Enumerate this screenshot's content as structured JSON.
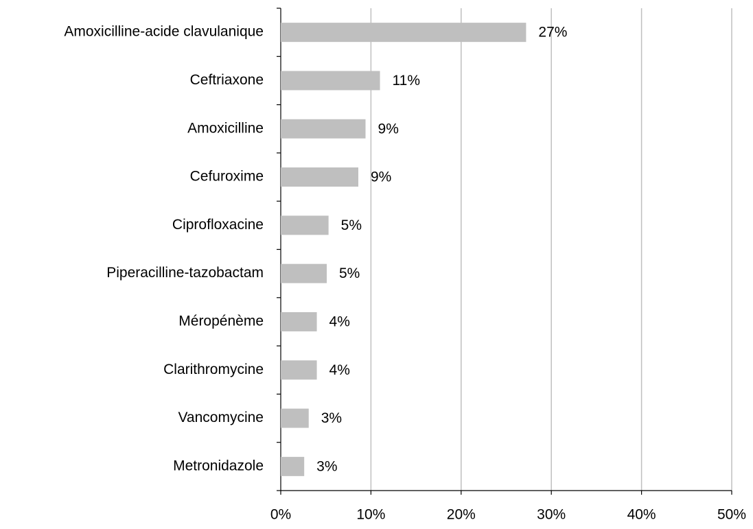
{
  "chart_data": {
    "type": "hbar",
    "categories": [
      "Amoxicilline-acide clavulanique",
      "Ceftriaxone",
      "Amoxicilline",
      "Cefuroxime",
      "Ciprofloxacine",
      "Piperacilline-tazobactam",
      "Méropénème",
      "Clarithromycine",
      "Vancomycine",
      "Metronidazole"
    ],
    "values": [
      27.2,
      11.0,
      9.4,
      8.6,
      5.3,
      5.1,
      4.0,
      4.0,
      3.1,
      2.6
    ],
    "value_labels": [
      "27%",
      "11%",
      "9%",
      "9%",
      "5%",
      "5%",
      "4%",
      "4%",
      "3%",
      "3%"
    ],
    "color": "#bfbfbf",
    "xlim": [
      0,
      50
    ],
    "xticks": [
      {
        "value": 0,
        "label": "0%"
      },
      {
        "value": 10,
        "label": "10%"
      },
      {
        "value": 20,
        "label": "20%"
      },
      {
        "value": 30,
        "label": "30%"
      },
      {
        "value": 40,
        "label": "40%"
      },
      {
        "value": 50,
        "label": "50%"
      }
    ],
    "grid": true
  }
}
